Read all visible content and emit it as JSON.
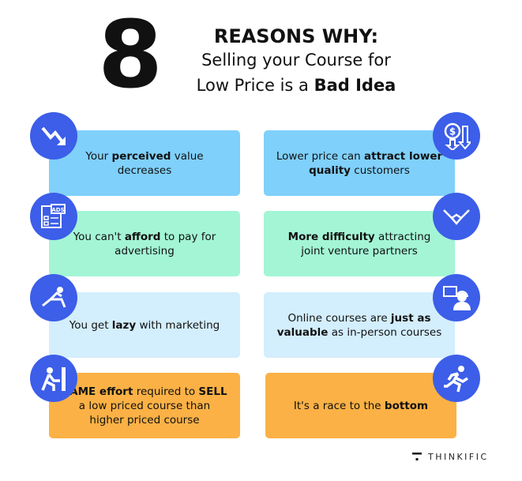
{
  "header": {
    "number": "8",
    "line1": "REASONS WHY:",
    "line2": "Selling your Course for",
    "line3_pre": "Low Price is a ",
    "line3_bold": "Bad Idea"
  },
  "colors": {
    "icon_circle": "#3c5ee8",
    "blue": "#7fd0fb",
    "green": "#a3f5d6",
    "light_blue": "#d3eefc",
    "orange": "#fbb145"
  },
  "cards": [
    {
      "color": "#7fd0fb",
      "icon": "trend-down-icon",
      "segments": [
        {
          "t": "Your "
        },
        {
          "t": "perceived",
          "b": true
        },
        {
          "t": " value decreases"
        }
      ]
    },
    {
      "color": "#7fd0fb",
      "icon": "dollar-down-icon",
      "segments": [
        {
          "t": "Lower price can "
        },
        {
          "t": "attract lower quality",
          "b": true
        },
        {
          "t": " customers"
        }
      ]
    },
    {
      "color": "#a3f5d6",
      "icon": "ads-icon",
      "segments": [
        {
          "t": "You can't "
        },
        {
          "t": "afford",
          "b": true
        },
        {
          "t": " to pay for advertising"
        }
      ]
    },
    {
      "color": "#a3f5d6",
      "icon": "handshake-icon",
      "segments": [
        {
          "t": "More difficulty",
          "b": true
        },
        {
          "t": " attracting joint venture partners"
        }
      ]
    },
    {
      "color": "#d3eefc",
      "icon": "lounge-chair-icon",
      "segments": [
        {
          "t": "You get "
        },
        {
          "t": "lazy",
          "b": true
        },
        {
          "t": " with marketing"
        }
      ]
    },
    {
      "color": "#d3eefc",
      "icon": "online-support-icon",
      "segments": [
        {
          "t": "Online courses are "
        },
        {
          "t": "just as valuable",
          "b": true
        },
        {
          "t": " as in-person courses"
        }
      ]
    },
    {
      "color": "#fbb145",
      "icon": "push-wall-icon",
      "segments": [
        {
          "t": "SAME effort",
          "b": true
        },
        {
          "t": " required to "
        },
        {
          "t": "SELL",
          "b": true
        },
        {
          "t": " a low priced course than higher priced course"
        }
      ]
    },
    {
      "color": "#fbb145",
      "icon": "running-icon",
      "segments": [
        {
          "t": "It's a race to the "
        },
        {
          "t": "bottom",
          "b": true
        }
      ]
    }
  ],
  "brand": {
    "name": "THINKIFIC"
  }
}
